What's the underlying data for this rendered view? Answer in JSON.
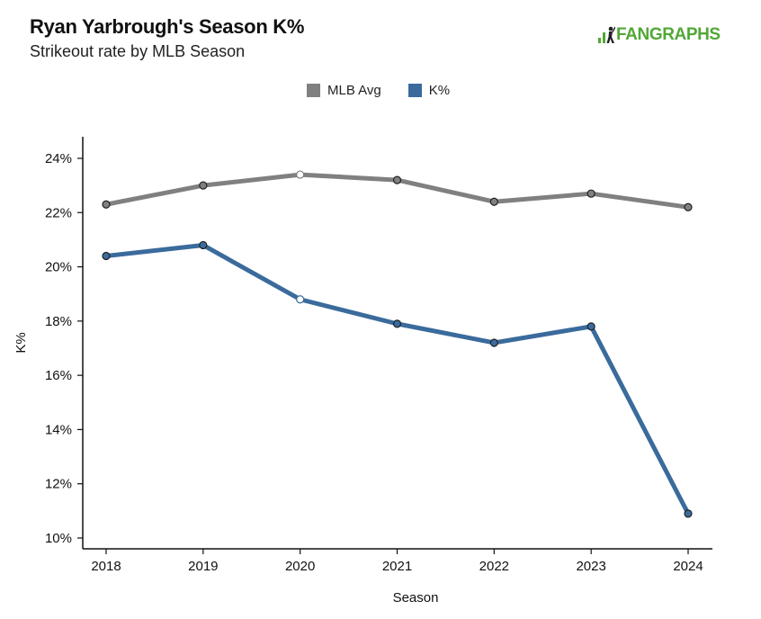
{
  "header": {
    "title": "Ryan Yarbrough's Season K%",
    "subtitle": "Strikeout rate by MLB Season"
  },
  "logo": {
    "text_prefix": "FAN",
    "text_suffix": "GRAPHS",
    "color": "#52a736"
  },
  "chart_data": {
    "type": "line",
    "title": "Ryan Yarbrough's Season K%",
    "subtitle": "Strikeout rate by MLB Season",
    "xlabel": "Season",
    "ylabel": "K%",
    "x": [
      2018,
      2019,
      2020,
      2021,
      2022,
      2023,
      2024
    ],
    "x_tick_labels": [
      "2018",
      "2019",
      "2020",
      "2021",
      "2022",
      "2023",
      "2024"
    ],
    "ylim": [
      10,
      24
    ],
    "y_ticks": [
      10,
      12,
      14,
      16,
      18,
      20,
      22,
      24
    ],
    "y_tick_labels": [
      "10%",
      "12%",
      "14%",
      "16%",
      "18%",
      "20%",
      "22%",
      "24%"
    ],
    "grid": false,
    "legend_position": "top-center",
    "series": [
      {
        "name": "MLB Avg",
        "color": "#808080",
        "values": [
          22.3,
          23.0,
          23.4,
          23.2,
          22.4,
          22.7,
          22.2
        ]
      },
      {
        "name": "K%",
        "color": "#3a6b9c",
        "values": [
          20.4,
          20.8,
          18.8,
          17.9,
          17.2,
          17.8,
          10.9
        ]
      }
    ]
  }
}
